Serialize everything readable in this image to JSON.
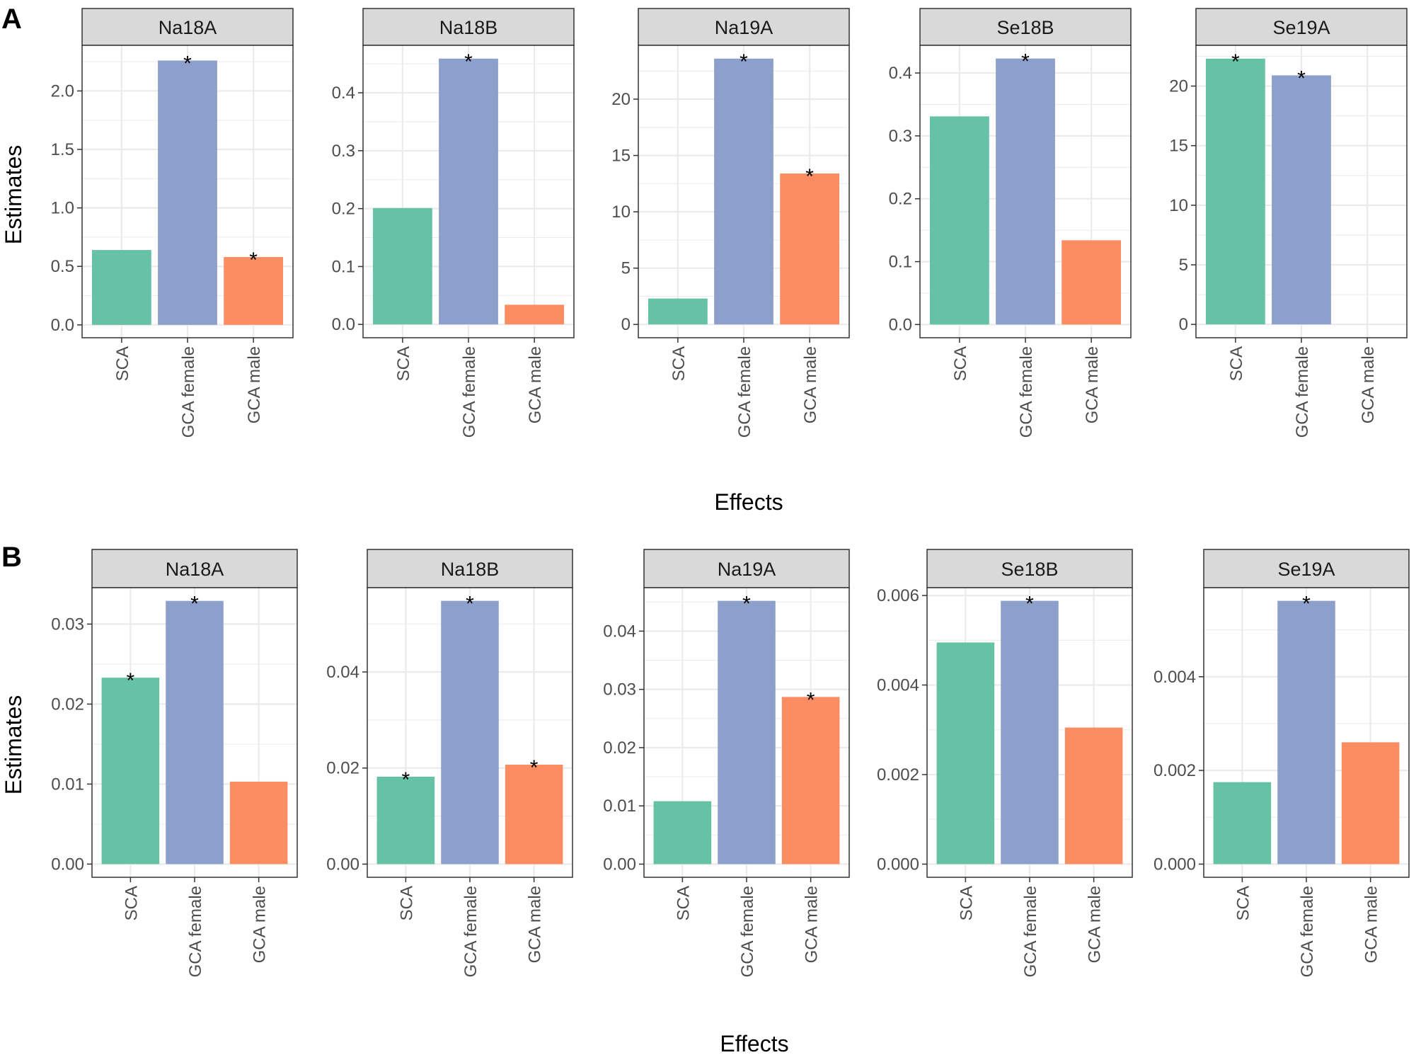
{
  "colors": {
    "SCA": "#66c2a5",
    "GCA female": "#8da0cb",
    "GCA male": "#fc8d62",
    "strip_bg": "#d9d9d9",
    "grid": "#ebebeb",
    "border": "#333333"
  },
  "chart_data": [
    {
      "panel_label": "A",
      "type": "bar",
      "xlabel": "Effects",
      "ylabel": "Estimates",
      "categories": [
        "SCA",
        "GCA female",
        "GCA male"
      ],
      "facets": [
        {
          "title": "Na18A",
          "values": [
            0.64,
            2.26,
            0.58
          ],
          "significant": [
            false,
            true,
            true
          ],
          "ylim": [
            -0.11,
            2.39
          ],
          "ticks": [
            0.0,
            0.5,
            1.0,
            1.5,
            2.0
          ],
          "tick_labels": [
            "0.0",
            "0.5",
            "1.0",
            "1.5",
            "2.0"
          ]
        },
        {
          "title": "Na18B",
          "values": [
            0.201,
            0.459,
            0.034
          ],
          "significant": [
            false,
            true,
            false
          ],
          "ylim": [
            -0.023,
            0.482
          ],
          "ticks": [
            0.0,
            0.1,
            0.2,
            0.3,
            0.4
          ],
          "tick_labels": [
            "0.0",
            "0.1",
            "0.2",
            "0.3",
            "0.4"
          ]
        },
        {
          "title": "Na19A",
          "values": [
            2.3,
            23.6,
            13.4
          ],
          "significant": [
            false,
            true,
            true
          ],
          "ylim": [
            -1.18,
            24.78
          ],
          "ticks": [
            0,
            5,
            10,
            15,
            20
          ],
          "tick_labels": [
            "0",
            "5",
            "10",
            "15",
            "20"
          ]
        },
        {
          "title": "Se18B",
          "values": [
            0.331,
            0.423,
            0.134
          ],
          "significant": [
            false,
            true,
            false
          ],
          "ylim": [
            -0.021,
            0.444
          ],
          "ticks": [
            0.0,
            0.1,
            0.2,
            0.3,
            0.4
          ],
          "tick_labels": [
            "0.0",
            "0.1",
            "0.2",
            "0.3",
            "0.4"
          ]
        },
        {
          "title": "Se19A",
          "values": [
            22.3,
            20.9,
            0
          ],
          "significant": [
            true,
            true,
            false
          ],
          "ylim": [
            -1.12,
            23.42
          ],
          "ticks": [
            0,
            5,
            10,
            15,
            20
          ],
          "tick_labels": [
            "0",
            "5",
            "10",
            "15",
            "20"
          ]
        }
      ]
    },
    {
      "panel_label": "B",
      "type": "bar",
      "xlabel": "Effects",
      "ylabel": "Estimates",
      "categories": [
        "SCA",
        "GCA female",
        "GCA male"
      ],
      "facets": [
        {
          "title": "Na18A",
          "values": [
            0.0233,
            0.0329,
            0.0103
          ],
          "significant": [
            true,
            true,
            false
          ],
          "ylim": [
            -0.00165,
            0.03455
          ],
          "ticks": [
            0.0,
            0.01,
            0.02,
            0.03
          ],
          "tick_labels": [
            "0.00",
            "0.01",
            "0.02",
            "0.03"
          ]
        },
        {
          "title": "Na18B",
          "values": [
            0.0182,
            0.0548,
            0.0207
          ],
          "significant": [
            true,
            true,
            true
          ],
          "ylim": [
            -0.00274,
            0.05754
          ],
          "ticks": [
            0.0,
            0.02,
            0.04
          ],
          "tick_labels": [
            "0.00",
            "0.02",
            "0.04"
          ]
        },
        {
          "title": "Na19A",
          "values": [
            0.0108,
            0.0452,
            0.0287
          ],
          "significant": [
            false,
            true,
            true
          ],
          "ylim": [
            -0.00226,
            0.04746
          ],
          "ticks": [
            0.0,
            0.01,
            0.02,
            0.03,
            0.04
          ],
          "tick_labels": [
            "0.00",
            "0.01",
            "0.02",
            "0.03",
            "0.04"
          ]
        },
        {
          "title": "Se18B",
          "values": [
            0.00495,
            0.00588,
            0.00305
          ],
          "significant": [
            false,
            true,
            false
          ],
          "ylim": [
            -0.000294,
            0.006174
          ],
          "ticks": [
            0.0,
            0.002,
            0.004,
            0.006
          ],
          "tick_labels": [
            "0.000",
            "0.002",
            "0.004",
            "0.006"
          ]
        },
        {
          "title": "Se19A",
          "values": [
            0.00175,
            0.00562,
            0.0026
          ],
          "significant": [
            false,
            true,
            false
          ],
          "ylim": [
            -0.000281,
            0.005901
          ],
          "ticks": [
            0.0,
            0.002,
            0.004
          ],
          "tick_labels": [
            "0.000",
            "0.002",
            "0.004"
          ]
        }
      ]
    }
  ]
}
